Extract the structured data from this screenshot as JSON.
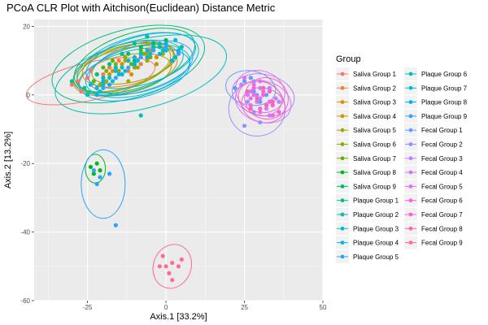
{
  "chart_data": {
    "type": "scatter",
    "title": "PCoA CLR Plot with Aitchison(Euclidean) Distance Metric",
    "xlabel": "Axis.1   [33.2%]",
    "ylabel": "Axis.2   [13.2%]",
    "xlim": [
      -42,
      50
    ],
    "ylim": [
      -60,
      22
    ],
    "xticks": [
      -25,
      0,
      25,
      50
    ],
    "yticks": [
      20,
      0,
      -20,
      -40,
      -60
    ],
    "grid": true,
    "legend_title": "Group",
    "legend_position": "right",
    "ellipses": true,
    "series": [
      {
        "name": "Saliva Group 1",
        "color": "#F8766D",
        "points": [
          [
            -30,
            3
          ],
          [
            -28,
            4
          ],
          [
            -25,
            5
          ],
          [
            -22,
            2
          ],
          [
            -20,
            6
          ],
          [
            -27,
            1
          ],
          [
            -24,
            7
          ]
        ],
        "ellipse": {
          "cx": -24,
          "cy": 4,
          "rx": 21,
          "ry": 5.5,
          "angle": 13
        }
      },
      {
        "name": "Saliva Group 2",
        "color": "#EC8239",
        "points": [
          [
            -18,
            8
          ],
          [
            -15,
            10
          ],
          [
            -12,
            7
          ],
          [
            -10,
            11
          ],
          [
            -8,
            9
          ],
          [
            -14,
            12
          ],
          [
            -5,
            13
          ],
          [
            0,
            14
          ]
        ],
        "ellipse": {
          "cx": -12,
          "cy": 9,
          "rx": 15,
          "ry": 6,
          "angle": 14
        }
      },
      {
        "name": "Saliva Group 3",
        "color": "#DB8E00",
        "points": [
          [
            -20,
            5
          ],
          [
            -17,
            7
          ],
          [
            -14,
            9
          ],
          [
            -11,
            6
          ],
          [
            -9,
            10
          ],
          [
            -6,
            12
          ],
          [
            -3,
            11
          ]
        ],
        "ellipse": {
          "cx": -13,
          "cy": 7,
          "rx": 17,
          "ry": 6.5,
          "angle": 14
        }
      },
      {
        "name": "Saliva Group 4",
        "color": "#C79800",
        "points": [
          [
            -22,
            6
          ],
          [
            -19,
            4
          ],
          [
            -16,
            8
          ],
          [
            -13,
            10
          ],
          [
            -10,
            9
          ],
          [
            -7,
            12
          ],
          [
            -4,
            14
          ]
        ],
        "ellipse": {
          "cx": -14,
          "cy": 8,
          "rx": 16,
          "ry": 6,
          "angle": 16
        }
      },
      {
        "name": "Saliva Group 5",
        "color": "#AEA200",
        "points": [
          [
            -21,
            3
          ],
          [
            -18,
            6
          ],
          [
            -15,
            7
          ],
          [
            -12,
            4
          ],
          [
            -9,
            8
          ],
          [
            -6,
            10
          ],
          [
            -3,
            9
          ]
        ],
        "ellipse": {
          "cx": -13,
          "cy": 6,
          "rx": 15,
          "ry": 5.5,
          "angle": 12
        }
      },
      {
        "name": "Saliva Group 6",
        "color": "#8FAA00",
        "points": [
          [
            -19,
            7
          ],
          [
            -16,
            9
          ],
          [
            -13,
            11
          ],
          [
            -10,
            8
          ],
          [
            -7,
            12
          ],
          [
            -4,
            13
          ],
          [
            -1,
            12
          ]
        ],
        "ellipse": {
          "cx": -10,
          "cy": 9,
          "rx": 14,
          "ry": 5,
          "angle": 15
        }
      },
      {
        "name": "Saliva Group 7",
        "color": "#64B200",
        "points": [
          [
            -23,
            4
          ],
          [
            -20,
            8
          ],
          [
            -17,
            10
          ],
          [
            -14,
            6
          ],
          [
            -11,
            9
          ],
          [
            -8,
            13
          ],
          [
            -5,
            11
          ]
        ],
        "ellipse": {
          "cx": -13,
          "cy": 8,
          "rx": 16,
          "ry": 6,
          "angle": 18
        }
      },
      {
        "name": "Saliva Group 8",
        "color": "#00B81B",
        "points": [
          [
            -24,
            -21
          ],
          [
            -22,
            -20
          ],
          [
            -23,
            -23
          ],
          [
            -21,
            -22
          ]
        ],
        "ellipse": {
          "cx": -22.5,
          "cy": -21.5,
          "rx": 3.2,
          "ry": 4.2,
          "angle": 0
        }
      },
      {
        "name": "Saliva Group 9",
        "color": "#00BD5C",
        "points": [
          [
            -20,
            5
          ],
          [
            -16,
            8
          ],
          [
            -12,
            12
          ],
          [
            -8,
            14
          ],
          [
            -4,
            15
          ],
          [
            0,
            16
          ],
          [
            -10,
            10
          ]
        ],
        "ellipse": {
          "cx": -10,
          "cy": 10,
          "rx": 20,
          "ry": 8,
          "angle": 18
        }
      },
      {
        "name": "Plaque Group 1",
        "color": "#00C08D",
        "points": [
          [
            -26,
            2
          ],
          [
            -22,
            6
          ],
          [
            -18,
            9
          ],
          [
            -14,
            12
          ],
          [
            -10,
            15
          ],
          [
            -6,
            17
          ],
          [
            -2,
            14
          ],
          [
            2,
            10
          ],
          [
            -30,
            4
          ]
        ],
        "ellipse": {
          "cx": -12,
          "cy": 9,
          "rx": 25,
          "ry": 10,
          "angle": 15
        }
      },
      {
        "name": "Plaque Group 2",
        "color": "#00C1B2",
        "points": [
          [
            -25,
            0
          ],
          [
            -20,
            3
          ],
          [
            -15,
            6
          ],
          [
            -10,
            9
          ],
          [
            -5,
            12
          ],
          [
            0,
            13
          ],
          [
            5,
            14
          ],
          [
            -8,
            -6
          ]
        ],
        "ellipse": {
          "cx": -8,
          "cy": 6,
          "rx": 28,
          "ry": 10,
          "angle": 14
        }
      },
      {
        "name": "Plaque Group 3",
        "color": "#00BCD6",
        "points": [
          [
            -22,
            2
          ],
          [
            -18,
            5
          ],
          [
            -14,
            8
          ],
          [
            -10,
            11
          ],
          [
            -6,
            13
          ],
          [
            -2,
            15
          ],
          [
            3,
            16
          ]
        ],
        "ellipse": {
          "cx": -9,
          "cy": 9,
          "rx": 20,
          "ry": 8,
          "angle": 16
        }
      },
      {
        "name": "Plaque Group 4",
        "color": "#00B3F2",
        "points": [
          [
            -20,
            4
          ],
          [
            -16,
            7
          ],
          [
            -12,
            10
          ],
          [
            -8,
            12
          ],
          [
            -4,
            14
          ],
          [
            0,
            15
          ],
          [
            4,
            13
          ]
        ],
        "ellipse": {
          "cx": -8,
          "cy": 10,
          "rx": 18,
          "ry": 7,
          "angle": 16
        }
      },
      {
        "name": "Plaque Group 5",
        "color": "#29A3FF",
        "points": [
          [
            -23,
            -22
          ],
          [
            -21,
            -24
          ],
          [
            -22,
            -26
          ],
          [
            -18,
            -23
          ],
          [
            -16,
            -38
          ]
        ],
        "ellipse": {
          "cx": -20,
          "cy": -26,
          "rx": 7,
          "ry": 10,
          "angle": 0
        }
      },
      {
        "name": "Plaque Group 6",
        "color": "#00C0B8",
        "points": [
          [
            -24,
            3
          ],
          [
            -20,
            5
          ],
          [
            -16,
            8
          ],
          [
            -12,
            10
          ],
          [
            -8,
            12
          ],
          [
            -4,
            14
          ],
          [
            0,
            13
          ]
        ],
        "ellipse": {
          "cx": -12,
          "cy": 8,
          "rx": 18,
          "ry": 7,
          "angle": 15
        }
      },
      {
        "name": "Plaque Group 7",
        "color": "#00BBDA",
        "points": [
          [
            -21,
            1
          ],
          [
            -17,
            4
          ],
          [
            -13,
            7
          ],
          [
            -9,
            10
          ],
          [
            -5,
            12
          ],
          [
            -1,
            13
          ],
          [
            3,
            11
          ]
        ],
        "ellipse": {
          "cx": -9,
          "cy": 7,
          "rx": 17,
          "ry": 7,
          "angle": 14
        }
      },
      {
        "name": "Plaque Group 8",
        "color": "#00B0F6",
        "points": [
          [
            -22,
            0
          ],
          [
            -18,
            3
          ],
          [
            -14,
            6
          ],
          [
            -10,
            9
          ],
          [
            -6,
            11
          ],
          [
            -2,
            12
          ],
          [
            2,
            10
          ]
        ],
        "ellipse": {
          "cx": -10,
          "cy": 6,
          "rx": 18,
          "ry": 7,
          "angle": 13
        }
      },
      {
        "name": "Plaque Group 9",
        "color": "#35A2FF",
        "points": [
          [
            -20,
            2
          ],
          [
            -16,
            5
          ],
          [
            -12,
            8
          ],
          [
            -8,
            11
          ],
          [
            -4,
            13
          ],
          [
            0,
            14
          ],
          [
            4,
            12
          ]
        ],
        "ellipse": {
          "cx": -8,
          "cy": 8,
          "rx": 17,
          "ry": 7,
          "angle": 15
        }
      },
      {
        "name": "Fecal Group 1",
        "color": "#619CFF",
        "points": [
          [
            22,
            2
          ],
          [
            25,
            4
          ],
          [
            28,
            1
          ],
          [
            30,
            -2
          ],
          [
            27,
            5
          ],
          [
            32,
            0
          ]
        ],
        "ellipse": {
          "cx": 27,
          "cy": 2,
          "rx": 8,
          "ry": 5,
          "angle": -10
        }
      },
      {
        "name": "Fecal Group 2",
        "color": "#9590FF",
        "points": [
          [
            26,
            -2
          ],
          [
            28,
            -5
          ],
          [
            30,
            -8
          ],
          [
            32,
            -3
          ],
          [
            25,
            -9
          ],
          [
            29,
            0
          ]
        ],
        "ellipse": {
          "cx": 29,
          "cy": -4,
          "rx": 9,
          "ry": 8,
          "angle": 0
        }
      },
      {
        "name": "Fecal Group 3",
        "color": "#B983FF",
        "points": [
          [
            24,
            3
          ],
          [
            27,
            1
          ],
          [
            30,
            -1
          ],
          [
            33,
            2
          ],
          [
            36,
            -2
          ],
          [
            28,
            4
          ]
        ],
        "ellipse": {
          "cx": 31,
          "cy": 0,
          "rx": 10,
          "ry": 6,
          "angle": -12
        }
      },
      {
        "name": "Fecal Group 4",
        "color": "#D376FF",
        "points": [
          [
            26,
            0
          ],
          [
            29,
            -2
          ],
          [
            32,
            -4
          ],
          [
            35,
            -1
          ],
          [
            30,
            2
          ],
          [
            33,
            -6
          ]
        ],
        "ellipse": {
          "cx": 31,
          "cy": -2,
          "rx": 9,
          "ry": 6,
          "angle": -15
        }
      },
      {
        "name": "Fecal Group 5",
        "color": "#E76BF3",
        "points": [
          [
            25,
            5
          ],
          [
            28,
            3
          ],
          [
            31,
            0
          ],
          [
            34,
            -3
          ],
          [
            27,
            -1
          ],
          [
            30,
            4
          ]
        ],
        "ellipse": {
          "cx": 30,
          "cy": 1,
          "rx": 8,
          "ry": 6,
          "angle": -20
        }
      },
      {
        "name": "Fecal Group 6",
        "color": "#F564E3",
        "points": [
          [
            27,
            -3
          ],
          [
            30,
            -5
          ],
          [
            33,
            -2
          ],
          [
            31,
            1
          ],
          [
            28,
            0
          ],
          [
            34,
            -6
          ]
        ],
        "ellipse": {
          "cx": 31,
          "cy": -3,
          "rx": 7,
          "ry": 5,
          "angle": -15
        }
      },
      {
        "name": "Fecal Group 7",
        "color": "#FD61D1",
        "points": [
          [
            28,
            2
          ],
          [
            31,
            0
          ],
          [
            34,
            -3
          ],
          [
            30,
            -4
          ],
          [
            33,
            1
          ],
          [
            36,
            -5
          ]
        ],
        "ellipse": {
          "cx": 32,
          "cy": -1,
          "rx": 7,
          "ry": 6,
          "angle": -20
        }
      },
      {
        "name": "Fecal Group 8",
        "color": "#FF64B0",
        "points": [
          [
            26,
            1
          ],
          [
            29,
            -1
          ],
          [
            32,
            -3
          ],
          [
            27,
            -4
          ],
          [
            31,
            2
          ],
          [
            34,
            -2
          ]
        ],
        "ellipse": {
          "cx": 30,
          "cy": -1,
          "rx": 7,
          "ry": 5,
          "angle": -15
        }
      },
      {
        "name": "Fecal Group 9",
        "color": "#FF6C91",
        "points": [
          [
            -1,
            -47
          ],
          [
            2,
            -49
          ],
          [
            5,
            -48
          ],
          [
            -2,
            -50
          ],
          [
            1,
            -52
          ],
          [
            4,
            -50
          ],
          [
            2,
            -54
          ],
          [
            0,
            -50
          ]
        ],
        "ellipse": {
          "cx": 2,
          "cy": -50,
          "rx": 6,
          "ry": 6.5,
          "angle": -20
        }
      }
    ]
  }
}
